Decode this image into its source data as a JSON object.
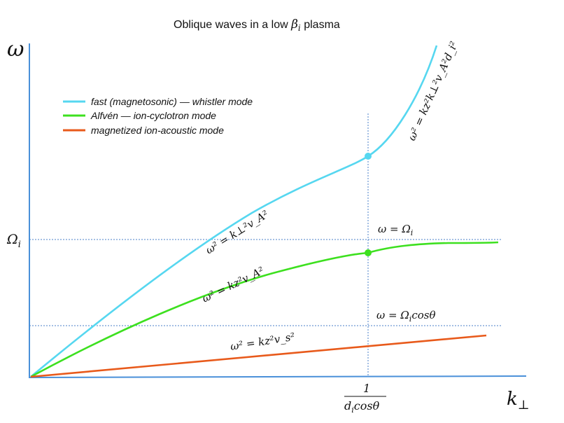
{
  "title": {
    "prefix": "Oblique waves in a low ",
    "beta": "β",
    "sub": "i",
    "suffix": " plasma"
  },
  "axes": {
    "y_label": "ω",
    "x_label_main": "k",
    "x_label_sub": "⊥",
    "omega_i_main": "Ω",
    "omega_i_sub": "i",
    "tick_numerator": "1",
    "tick_denominator_d": "d",
    "tick_denominator_sub": "i",
    "tick_denominator_rest": "cosθ"
  },
  "legend": [
    {
      "label": "fast (magnetosonic) — whistler mode",
      "color": "#56d7f0"
    },
    {
      "label": "Alfvén — ion-cyclotron mode",
      "color": "#3de01f"
    },
    {
      "label": "magnetized ion-acoustic mode",
      "color": "#e85a1b"
    }
  ],
  "annotations": {
    "omega_eq_omega_i": "ω =  Ω",
    "omega_eq_omega_i_sub": "i",
    "omega_eq_omega_i_cos": "ω =  Ω",
    "omega_eq_omega_i_cos_sub": "i",
    "omega_eq_omega_i_cos_rest": "cosθ",
    "fast_dispersion": "ω² = k⊥²v_A²",
    "alfven_dispersion": "ω² = kz²v_A²",
    "acoustic_dispersion": "ω² = kz²v_s²",
    "whistler_dispersion": "ω² = kz²k⊥²v_A²d_i²"
  },
  "colors": {
    "axis": "#4a90d9",
    "guide": "#4a7fc9",
    "fast": "#56d7f0",
    "alfven": "#3de01f",
    "acoustic": "#e85a1b"
  }
}
